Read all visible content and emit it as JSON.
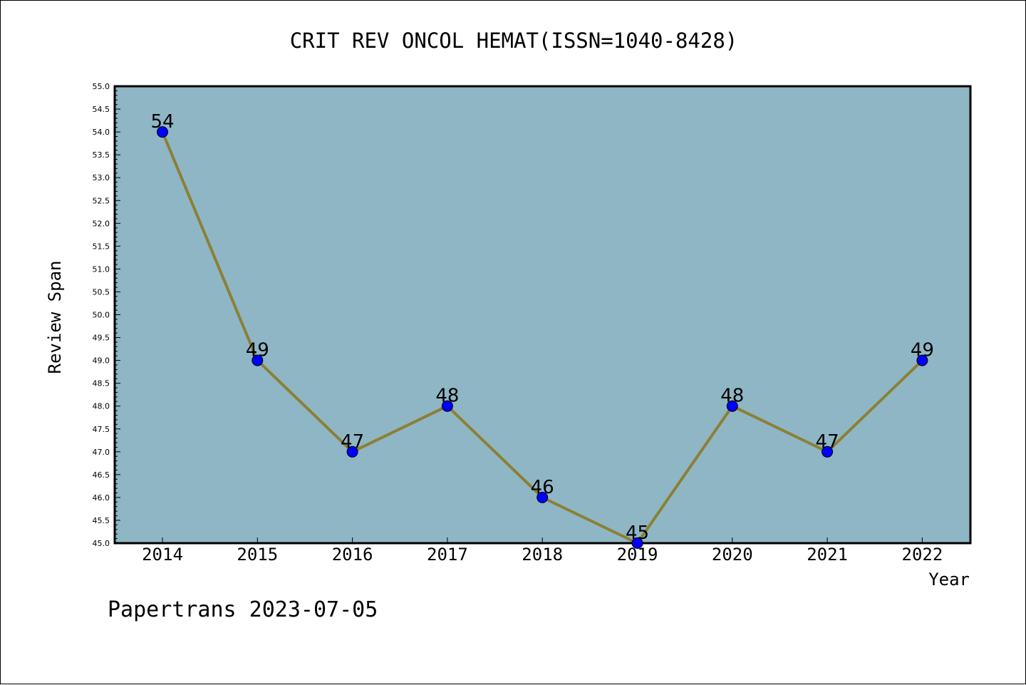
{
  "chart_data": {
    "type": "line",
    "title": "CRIT REV ONCOL HEMAT(ISSN=1040-8428)",
    "xlabel": "Year",
    "ylabel": "Review Span",
    "categories": [
      "2014",
      "2015",
      "2016",
      "2017",
      "2018",
      "2019",
      "2020",
      "2021",
      "2022"
    ],
    "series": [
      {
        "values": [
          54,
          49,
          47,
          48,
          46,
          45,
          48,
          47,
          49
        ]
      }
    ],
    "data_labels": [
      "54",
      "49",
      "47",
      "48",
      "46",
      "45",
      "48",
      "47",
      "49"
    ],
    "ylim": [
      45.0,
      55.0
    ],
    "y_ticks": [
      "45.0",
      "45.5",
      "46.0",
      "46.5",
      "47.0",
      "47.5",
      "48.0",
      "48.5",
      "49.0",
      "49.5",
      "50.0",
      "50.5",
      "51.0",
      "51.5",
      "52.0",
      "52.5",
      "53.0",
      "53.5",
      "54.0",
      "54.5",
      "55.0"
    ],
    "grid": false,
    "colors": {
      "plot_background": "#8fb6c5",
      "line": "#8b8035",
      "marker": "#0000ff"
    }
  },
  "footer": "Papertrans 2023-07-05"
}
